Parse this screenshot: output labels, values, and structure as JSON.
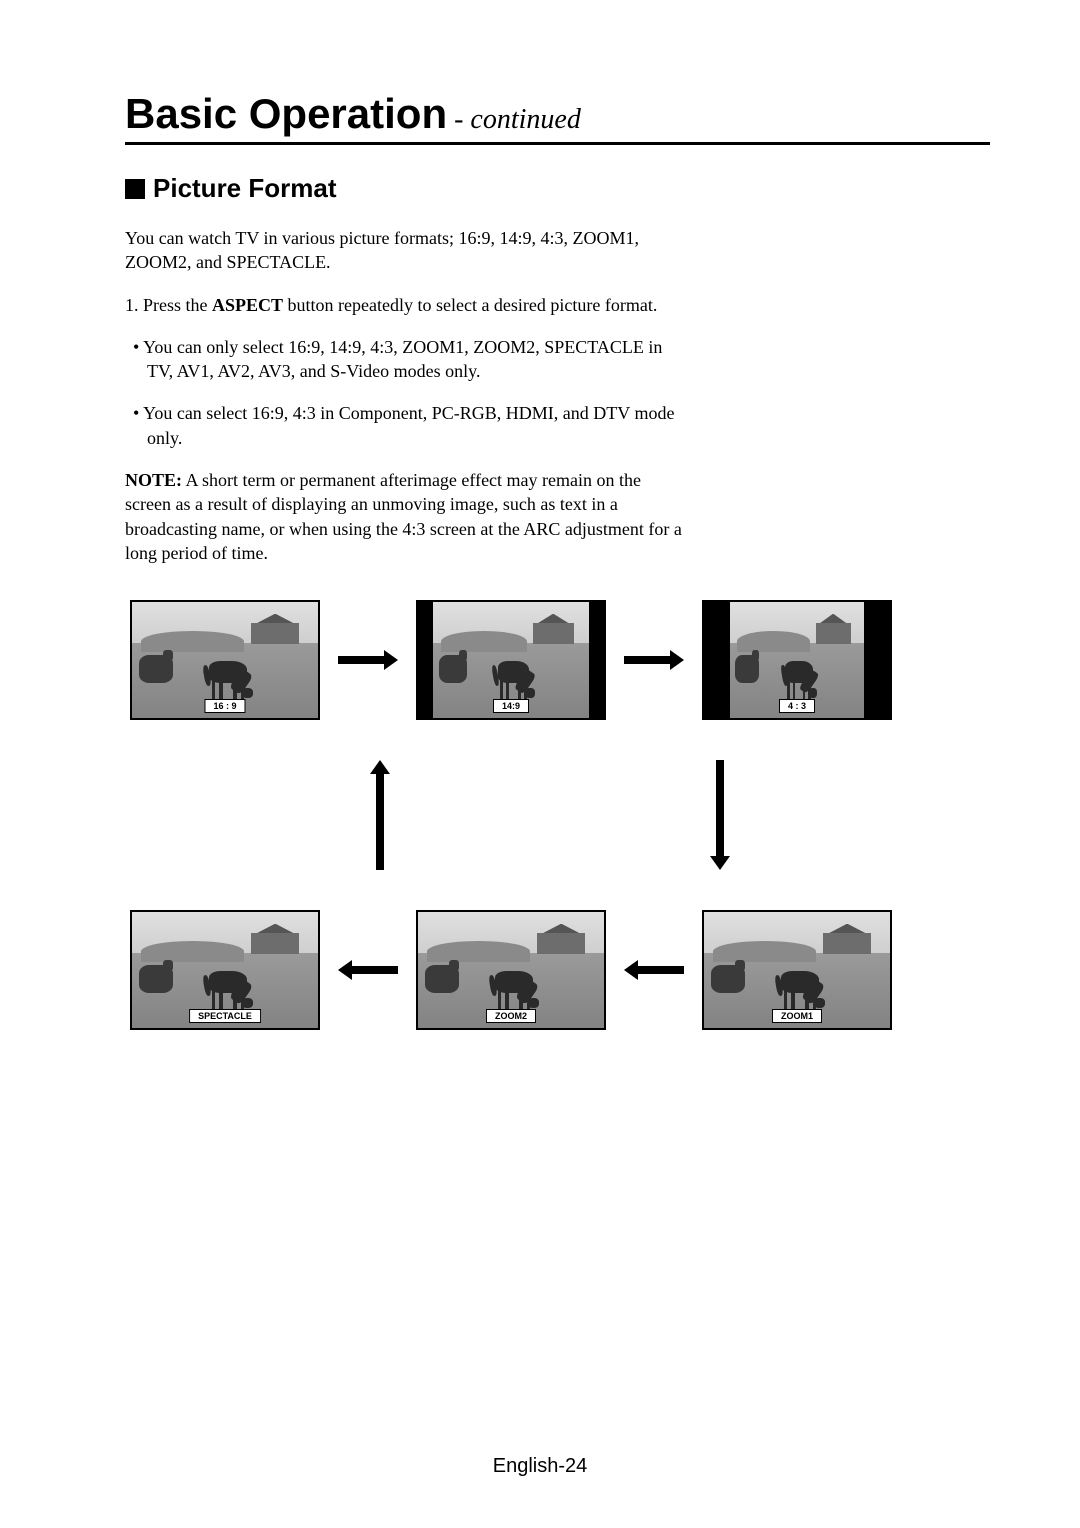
{
  "header": {
    "title": "Basic Operation",
    "continued": " - continued"
  },
  "section": {
    "title": "Picture Format"
  },
  "body": {
    "intro": "You can watch TV in various picture formats; 16:9, 14:9, 4:3, ZOOM1, ZOOM2, and SPECTACLE.",
    "step1_pre": "1.  Press the ",
    "step1_bold": "ASPECT",
    "step1_post": " button repeatedly to select a desired picture format.",
    "bullet1": "•  You can only select 16:9, 14:9, 4:3, ZOOM1, ZOOM2, SPECTACLE in TV, AV1, AV2, AV3, and S-Video modes only.",
    "bullet2": "•  You can select 16:9, 4:3 in Component, PC-RGB, HDMI, and DTV mode only.",
    "note_label": "NOTE:",
    "note_text": " A short term or permanent afterimage effect may remain on the screen as a result of displaying an unmoving image, such as text in a broadcasting name, or when using the 4:3 screen at the ARC adjustment for a long period of time."
  },
  "formats": {
    "f169": "16 : 9",
    "f149": "14:9",
    "f43": "4 : 3",
    "zoom1": "ZOOM1",
    "zoom2": "ZOOM2",
    "spectacle": "SPECTACLE"
  },
  "footer": {
    "page": "English-24"
  }
}
